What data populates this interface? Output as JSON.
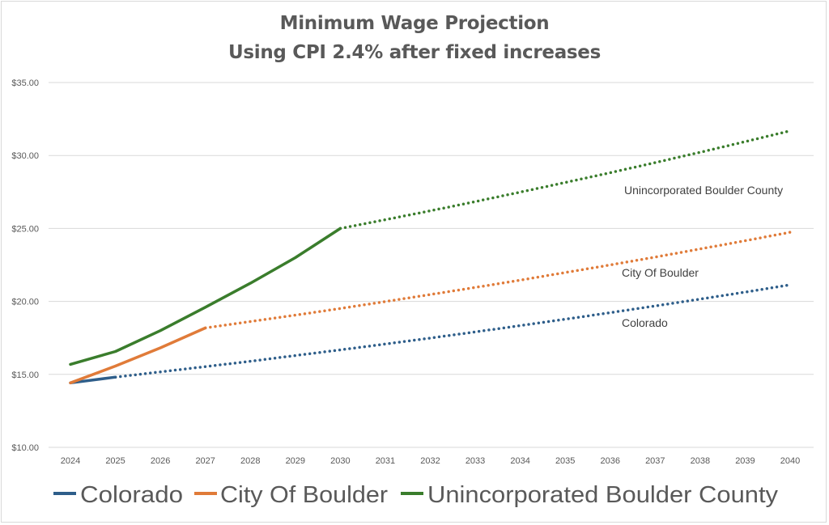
{
  "chart_data": {
    "type": "line",
    "title": "Minimum Wage Projection",
    "subtitle": "Using CPI 2.4% after fixed increases",
    "xlabel": "",
    "ylabel": "",
    "x": [
      2024,
      2025,
      2026,
      2027,
      2028,
      2029,
      2030,
      2031,
      2032,
      2033,
      2034,
      2035,
      2036,
      2037,
      2038,
      2039,
      2040
    ],
    "x_tick_labels": [
      "2024",
      "2025",
      "2026",
      "2027",
      "2028",
      "2029",
      "2030",
      "2031",
      "2032",
      "2033",
      "2034",
      "2035",
      "2036",
      "2037",
      "2038",
      "2039",
      "2040"
    ],
    "ylim": [
      10,
      35
    ],
    "y_ticks": [
      10,
      15,
      20,
      25,
      30,
      35
    ],
    "y_tick_labels": [
      "$10.00",
      "$15.00",
      "$20.00",
      "$25.00",
      "$30.00",
      "$35.00"
    ],
    "grid": "horizontal",
    "legend_position": "bottom",
    "series": [
      {
        "name": "Colorado",
        "color": "#2e5e8a",
        "values": [
          14.42,
          14.81,
          15.17,
          15.53,
          15.9,
          16.29,
          16.68,
          17.08,
          17.49,
          17.91,
          18.34,
          18.78,
          19.23,
          19.69,
          20.16,
          20.64,
          21.14
        ],
        "solid_through": 2025,
        "annotation": "Colorado"
      },
      {
        "name": "City Of Boulder",
        "color": "#e07b39",
        "values": [
          14.42,
          15.57,
          16.82,
          18.18,
          18.62,
          19.06,
          19.52,
          19.99,
          20.47,
          20.96,
          21.46,
          21.98,
          22.5,
          23.04,
          23.6,
          24.16,
          24.74
        ],
        "solid_through": 2027,
        "annotation": "City Of Boulder"
      },
      {
        "name": "Unincorporated Boulder County",
        "color": "#3a7d2c",
        "values": [
          15.69,
          16.57,
          18.0,
          19.6,
          21.25,
          23.0,
          25.0,
          25.6,
          26.21,
          26.84,
          27.49,
          28.15,
          28.82,
          29.51,
          30.22,
          30.95,
          31.69
        ],
        "solid_through": 2030,
        "annotation": "Unincorporated Boulder County"
      }
    ]
  },
  "colors": {
    "grid": "#d9d9d9",
    "tick_text": "#595959",
    "title_text": "#595959",
    "annotation_text": "#404040"
  }
}
